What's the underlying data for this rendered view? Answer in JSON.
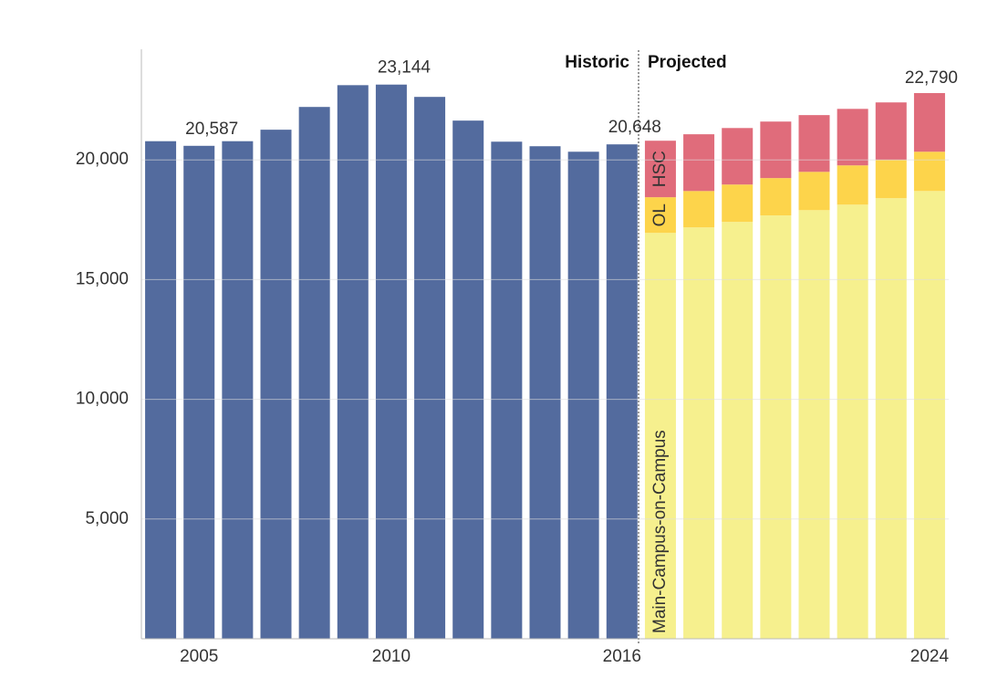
{
  "chart_data": {
    "type": "stacked-bar",
    "categories": [
      null,
      "2005",
      null,
      null,
      null,
      null,
      "2010",
      null,
      null,
      null,
      null,
      null,
      "2016",
      null,
      null,
      null,
      null,
      null,
      null,
      null,
      "2024"
    ],
    "series": [
      {
        "name": "Historic",
        "color": "#536b9e",
        "values": [
          20780,
          20587,
          20780,
          21260,
          22210,
          23120,
          23144,
          22630,
          21640,
          20760,
          20570,
          20340,
          20648,
          null,
          null,
          null,
          null,
          null,
          null,
          null,
          null
        ],
        "value_labels": [
          null,
          "20,587",
          null,
          null,
          null,
          null,
          "23,144",
          null,
          null,
          null,
          null,
          null,
          "20,648",
          null,
          null,
          null,
          null,
          null,
          null,
          null,
          null
        ]
      },
      {
        "name": "Main-Campus-on-Campus",
        "color": "#f6f08e",
        "values": [
          null,
          null,
          null,
          null,
          null,
          null,
          null,
          null,
          null,
          null,
          null,
          null,
          null,
          16950,
          17180,
          17410,
          17680,
          17900,
          18130,
          18400,
          18700
        ]
      },
      {
        "name": "OL",
        "color": "#fdd44b",
        "values": [
          null,
          null,
          null,
          null,
          null,
          null,
          null,
          null,
          null,
          null,
          null,
          null,
          null,
          1490,
          1520,
          1560,
          1560,
          1600,
          1640,
          1600,
          1640
        ]
      },
      {
        "name": "HSC",
        "color": "#e06c7b",
        "values": [
          null,
          null,
          null,
          null,
          null,
          null,
          null,
          null,
          null,
          null,
          null,
          null,
          null,
          2360,
          2370,
          2360,
          2360,
          2370,
          2360,
          2400,
          2450
        ]
      }
    ],
    "total_label": {
      "value": 22790,
      "label": "22,790"
    },
    "section_label": "Projected",
    "ylim": [
      0,
      25000
    ],
    "yticks": [
      {
        "value": 5000,
        "label": "5,000"
      },
      {
        "value": 10000,
        "label": "10,000"
      },
      {
        "value": 15000,
        "label": "15,000"
      },
      {
        "value": 20000,
        "label": "20,000"
      }
    ],
    "grid": true
  }
}
